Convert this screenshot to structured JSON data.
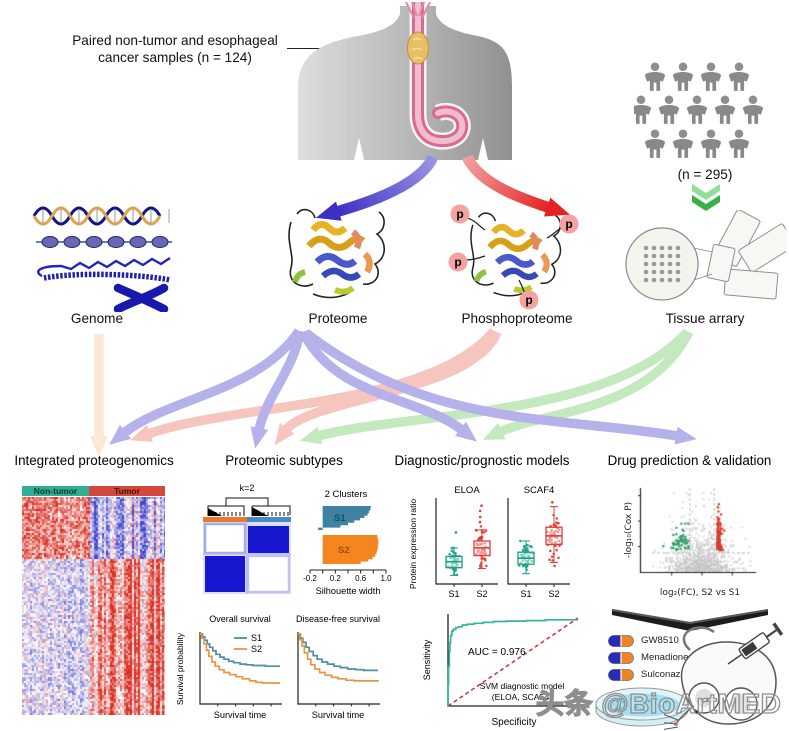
{
  "top": {
    "sample_label_line1": "Paired non-tumor and esophageal",
    "sample_label_line2": "cancer samples (n = 124)",
    "cohort_n": "(n = 295)"
  },
  "omics": {
    "genome": "Genome",
    "proteome": "Proteome",
    "phospho": "Phosphoproteome",
    "tissue": "Tissue arrary",
    "p_label": "p"
  },
  "panel_titles": {
    "p1": "Integrated proteogenomics",
    "p2": "Proteomic subtypes",
    "p3": "Diagnostic/prognostic models",
    "p4": "Drug prediction & validation"
  },
  "heatmap": {
    "group_left": "Non-tumor",
    "group_right": "Tumor"
  },
  "subtypes": {
    "k_label": "k=2",
    "clusters_title": "2 Clusters",
    "s1": "S1",
    "s2": "S2",
    "x_ticks": [
      "-0.2",
      "0.2",
      "0.6",
      "1.0"
    ],
    "x_label": "Silhouette width"
  },
  "survival": {
    "os_title": "Overall survival",
    "dfs_title": "Disease-free survival",
    "legend": [
      "S1",
      "S2"
    ],
    "y_label": "Survival probability",
    "x_label": "Survival time"
  },
  "models": {
    "gene1": "ELOA",
    "gene2": "SCAF4",
    "y_label": "Protein expression ratio",
    "groups": [
      "S1",
      "S2"
    ],
    "auc_text": "AUC = 0.976",
    "svm_line1": "SVM diagnostic model",
    "svm_line2": "(ELOA, SCAF4)",
    "roc_y": "Sensitivity",
    "roc_x": "Specificity"
  },
  "drug": {
    "volcano_y": "-log₁₀(Cox P)",
    "volcano_x": "log₂(FC), S2 vs S1",
    "drugs": [
      "GW8510",
      "Menadione",
      "Sulconazole"
    ]
  },
  "watermark": "头条 @BioArtMED",
  "chart_data": [
    {
      "id": "integrated_heatmap",
      "type": "heatmap",
      "col_groups": [
        {
          "label": "Non-tumor",
          "color": "#2fae96",
          "frac": 0.47
        },
        {
          "label": "Tumor",
          "color": "#d0493a",
          "frac": 0.53
        }
      ],
      "row_block_fracs": [
        0.28,
        0.22,
        0.5
      ],
      "block_means": [
        [
          0.58,
          -0.32
        ],
        [
          -0.15,
          0.55
        ],
        [
          -0.15,
          0.6
        ]
      ],
      "noise": 0.9,
      "tumor_col_streak": 0.55,
      "pos_color": "#dc2f23",
      "neg_color": "#4545d0"
    },
    {
      "id": "consensus_matrix",
      "type": "heatmap",
      "k": 2,
      "cluster_colors": [
        "#e87c26",
        "#4889c8"
      ],
      "high_color": "#1717cf",
      "low_color": "#ffffff"
    },
    {
      "id": "silhouette",
      "type": "area",
      "title": "2 Clusters",
      "xlabel": "Silhouette width",
      "xlim": [
        -0.2,
        1.0
      ],
      "xticks_all": [
        -0.2,
        0,
        0.2,
        0.4,
        0.6,
        0.8,
        1.0
      ],
      "xticks_labeled": [
        -0.2,
        0.2,
        0.6,
        1.0
      ],
      "clusters": [
        {
          "name": "S1",
          "color": "#3e84a2",
          "widths": [
            0.76,
            0.75,
            0.73,
            0.71,
            0.66,
            0.59,
            0.5,
            0.4,
            0.28,
            -0.07
          ]
        },
        {
          "name": "S2",
          "color": "#f5861f",
          "widths": [
            0.86,
            0.87,
            0.88,
            0.88,
            0.87,
            0.87,
            0.86,
            0.85,
            0.83,
            0.79,
            0.72,
            0.6
          ]
        }
      ]
    },
    {
      "id": "overall_survival",
      "type": "line",
      "title": "Overall survival",
      "xlabel": "Survival time",
      "ylabel": "Survival probability",
      "series": [
        {
          "name": "S1",
          "color": "#4e8ca8",
          "points": [
            [
              0,
              1
            ],
            [
              0.03,
              0.96
            ],
            [
              0.06,
              0.91
            ],
            [
              0.09,
              0.86
            ],
            [
              0.12,
              0.81
            ],
            [
              0.16,
              0.76
            ],
            [
              0.2,
              0.71
            ],
            [
              0.25,
              0.67
            ],
            [
              0.3,
              0.64
            ],
            [
              0.36,
              0.61
            ],
            [
              0.42,
              0.59
            ],
            [
              0.5,
              0.57
            ],
            [
              0.58,
              0.56
            ],
            [
              0.66,
              0.55
            ],
            [
              0.74,
              0.55
            ],
            [
              0.82,
              0.54
            ],
            [
              1,
              0.54
            ]
          ]
        },
        {
          "name": "S2",
          "color": "#e9973f",
          "points": [
            [
              0,
              1
            ],
            [
              0.02,
              0.94
            ],
            [
              0.05,
              0.86
            ],
            [
              0.08,
              0.77
            ],
            [
              0.11,
              0.68
            ],
            [
              0.15,
              0.6
            ],
            [
              0.19,
              0.54
            ],
            [
              0.24,
              0.49
            ],
            [
              0.3,
              0.45
            ],
            [
              0.37,
              0.42
            ],
            [
              0.45,
              0.39
            ],
            [
              0.53,
              0.36
            ],
            [
              0.62,
              0.33
            ],
            [
              0.7,
              0.31
            ],
            [
              0.78,
              0.3
            ],
            [
              1,
              0.3
            ]
          ]
        }
      ]
    },
    {
      "id": "disease_free_survival",
      "type": "line",
      "title": "Disease-free survival",
      "xlabel": "Survival time",
      "series": [
        {
          "name": "S1",
          "color": "#4e8ca8",
          "points": [
            [
              0,
              1
            ],
            [
              0.03,
              0.94
            ],
            [
              0.06,
              0.88
            ],
            [
              0.1,
              0.81
            ],
            [
              0.14,
              0.75
            ],
            [
              0.19,
              0.69
            ],
            [
              0.24,
              0.64
            ],
            [
              0.3,
              0.6
            ],
            [
              0.37,
              0.57
            ],
            [
              0.45,
              0.54
            ],
            [
              0.53,
              0.52
            ],
            [
              0.62,
              0.5
            ],
            [
              0.72,
              0.49
            ],
            [
              0.82,
              0.48
            ],
            [
              1,
              0.48
            ]
          ]
        },
        {
          "name": "S2",
          "color": "#e9973f",
          "points": [
            [
              0,
              1
            ],
            [
              0.02,
              0.92
            ],
            [
              0.05,
              0.83
            ],
            [
              0.08,
              0.73
            ],
            [
              0.12,
              0.64
            ],
            [
              0.16,
              0.56
            ],
            [
              0.21,
              0.5
            ],
            [
              0.27,
              0.45
            ],
            [
              0.34,
              0.41
            ],
            [
              0.42,
              0.38
            ],
            [
              0.5,
              0.36
            ],
            [
              0.6,
              0.34
            ],
            [
              0.7,
              0.33
            ],
            [
              1,
              0.32
            ]
          ]
        }
      ]
    },
    {
      "id": "expression_boxplots",
      "type": "scatter",
      "ylabel": "Protein expression ratio",
      "panels": [
        {
          "gene": "ELOA",
          "groups": [
            {
              "name": "S1",
              "color": "#18a086",
              "n": 42,
              "center": 0.26,
              "spread": 0.07,
              "box": [
                0.19,
                0.26,
                0.32
              ],
              "whiskers": [
                0.1,
                0.42
              ],
              "outliers": [
                0.6
              ]
            },
            {
              "name": "S2",
              "color": "#e03c31",
              "n": 50,
              "center": 0.42,
              "spread": 0.11,
              "box": [
                0.33,
                0.42,
                0.5
              ],
              "whiskers": [
                0.18,
                0.63
              ],
              "outliers": [
                0.72,
                0.78,
                0.85,
                0.91
              ]
            }
          ]
        },
        {
          "gene": "SCAF4",
          "groups": [
            {
              "name": "S1",
              "color": "#18a086",
              "n": 42,
              "center": 0.3,
              "spread": 0.08,
              "box": [
                0.23,
                0.3,
                0.37
              ],
              "whiskers": [
                0.12,
                0.5
              ],
              "outliers": []
            },
            {
              "name": "S2",
              "color": "#e03c31",
              "n": 55,
              "center": 0.56,
              "spread": 0.13,
              "box": [
                0.46,
                0.56,
                0.66
              ],
              "whiskers": [
                0.25,
                0.9
              ],
              "outliers": [
                0.95
              ]
            }
          ]
        }
      ]
    },
    {
      "id": "roc",
      "type": "line",
      "auc": 0.976,
      "label": "SVM diagnostic model (ELOA, SCAF4)",
      "xlabel": "Specificity",
      "ylabel": "Sensitivity",
      "color": "#35b5a0",
      "diagonal_color": "#d2302a",
      "points": [
        [
          0,
          0
        ],
        [
          0.005,
          0.25
        ],
        [
          0.01,
          0.45
        ],
        [
          0.015,
          0.62
        ],
        [
          0.02,
          0.72
        ],
        [
          0.03,
          0.8
        ],
        [
          0.04,
          0.85
        ],
        [
          0.06,
          0.87
        ],
        [
          0.08,
          0.89
        ],
        [
          0.11,
          0.9
        ],
        [
          0.15,
          0.92
        ],
        [
          0.2,
          0.93
        ],
        [
          0.27,
          0.94
        ],
        [
          0.35,
          0.95
        ],
        [
          0.45,
          0.96
        ],
        [
          0.6,
          0.965
        ],
        [
          0.75,
          0.97
        ],
        [
          0.9,
          0.98
        ],
        [
          1,
          0.98
        ]
      ]
    },
    {
      "id": "volcano",
      "type": "scatter",
      "xlabel": "log₂(FC), S2 vs S1",
      "ylabel": "-log₁₀(Cox P)",
      "xlim": [
        -3.3,
        3.3
      ],
      "ylim": [
        0,
        3.3
      ],
      "n_background": 900,
      "n_down": 55,
      "n_up": 110,
      "background_color": "#c6c6c6",
      "sig_down_color": "#2e9e6b",
      "sig_up_color": "#d0402e",
      "fc_threshold": 0.8,
      "p_threshold": 0.75
    }
  ]
}
